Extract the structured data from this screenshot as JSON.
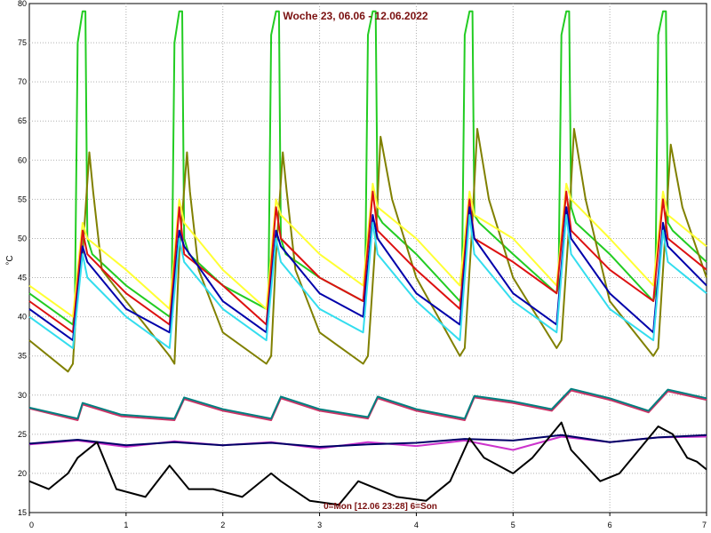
{
  "chart_data": {
    "type": "line",
    "title": "Woche 23, 06.06 - 12.06.2022",
    "xlabel": "0=Mon [12.06 23:28] 6=Son",
    "ylabel": "°C",
    "xlim": [
      0,
      7
    ],
    "ylim": [
      15,
      80
    ],
    "x_ticks": [
      "0",
      "1",
      "2",
      "3",
      "4",
      "5",
      "6",
      "7"
    ],
    "y_ticks": [
      "15",
      "20",
      "25",
      "30",
      "35",
      "40",
      "45",
      "50",
      "55",
      "60",
      "65",
      "70",
      "75",
      "80"
    ],
    "grid": true,
    "series": [
      {
        "color": "#22cc22",
        "x": [
          0,
          0.45,
          0.47,
          0.5,
          0.55,
          0.58,
          0.6,
          0.65,
          1.0,
          1.45,
          1.47,
          1.5,
          1.55,
          1.58,
          1.6,
          1.65,
          2.0,
          2.45,
          2.47,
          2.5,
          2.55,
          2.58,
          2.6,
          2.65,
          3.0,
          3.45,
          3.47,
          3.5,
          3.55,
          3.58,
          3.6,
          3.65,
          4.0,
          4.45,
          4.47,
          4.5,
          4.55,
          4.58,
          4.6,
          4.65,
          5.0,
          5.45,
          5.47,
          5.5,
          5.55,
          5.58,
          5.6,
          5.65,
          6.0,
          6.45,
          6.47,
          6.5,
          6.55,
          6.58,
          6.6,
          6.65,
          7.0
        ],
        "y": [
          43,
          39,
          41,
          75,
          79,
          79,
          50,
          48,
          44,
          40,
          41,
          75,
          79,
          79,
          50,
          48,
          44,
          41,
          42,
          76,
          79,
          79,
          50,
          48,
          45,
          42,
          43,
          76,
          79,
          79,
          53,
          52,
          48,
          42,
          43,
          76,
          79,
          79,
          53,
          52,
          48,
          43,
          44,
          76,
          79,
          79,
          54,
          52,
          48,
          42,
          43,
          76,
          79,
          79,
          52,
          51,
          47
        ]
      },
      {
        "color": "#808000",
        "x": [
          0,
          0.4,
          0.45,
          0.5,
          0.55,
          0.62,
          0.66,
          0.75,
          1.0,
          1.45,
          1.5,
          1.55,
          1.63,
          1.66,
          1.75,
          2.0,
          2.45,
          2.5,
          2.55,
          2.62,
          2.66,
          2.75,
          3.0,
          3.45,
          3.5,
          3.58,
          3.63,
          3.75,
          4.0,
          4.45,
          4.5,
          4.57,
          4.63,
          4.75,
          5.0,
          5.45,
          5.5,
          5.57,
          5.63,
          5.75,
          6.0,
          6.45,
          6.5,
          6.57,
          6.63,
          6.75,
          7.0
        ],
        "y": [
          37,
          33,
          34,
          44,
          48,
          61,
          56,
          46,
          42,
          35,
          34,
          48,
          61,
          56,
          46,
          38,
          34,
          35,
          48,
          61,
          56,
          46,
          38,
          34,
          35,
          50,
          63,
          55,
          45,
          35,
          36,
          50,
          64,
          55,
          45,
          36,
          37,
          50,
          64,
          55,
          42,
          35,
          36,
          50,
          62,
          54,
          45
        ]
      },
      {
        "color": "#ffff33",
        "x": [
          0,
          0.45,
          0.55,
          0.6,
          1.0,
          1.45,
          1.55,
          1.6,
          2.0,
          2.45,
          2.55,
          2.6,
          3.0,
          3.45,
          3.55,
          3.6,
          4.0,
          4.45,
          4.55,
          4.6,
          5.0,
          5.45,
          5.55,
          5.6,
          6.0,
          6.45,
          6.55,
          6.6,
          7.0
        ],
        "y": [
          44,
          40,
          52,
          50,
          46,
          41,
          55,
          52,
          46,
          41,
          55,
          53,
          48,
          44,
          57,
          54,
          50,
          44,
          56,
          53,
          50,
          44,
          57,
          55,
          50,
          44,
          56,
          53,
          49
        ]
      },
      {
        "color": "#dd1111",
        "x": [
          0,
          0.45,
          0.55,
          0.6,
          1.0,
          1.45,
          1.55,
          1.6,
          2.0,
          2.45,
          2.55,
          2.6,
          3.0,
          3.45,
          3.55,
          3.6,
          4.0,
          4.45,
          4.55,
          4.6,
          5.0,
          5.45,
          5.55,
          5.6,
          6.0,
          6.45,
          6.55,
          6.6,
          7.0
        ],
        "y": [
          42,
          38,
          51,
          48,
          43,
          39,
          54,
          48,
          44,
          39,
          54,
          50,
          45,
          42,
          56,
          51,
          46,
          41,
          55,
          50,
          47,
          43,
          56,
          51,
          46,
          42,
          55,
          50,
          46
        ]
      },
      {
        "color": "#0000aa",
        "x": [
          0,
          0.45,
          0.55,
          0.6,
          1.0,
          1.45,
          1.55,
          1.6,
          2.0,
          2.45,
          2.55,
          2.6,
          3.0,
          3.45,
          3.55,
          3.6,
          4.0,
          4.45,
          4.55,
          4.6,
          5.0,
          5.45,
          5.55,
          5.6,
          6.0,
          6.45,
          6.55,
          6.6,
          7.0
        ],
        "y": [
          41,
          37,
          49,
          47,
          41,
          38,
          51,
          49,
          42,
          38,
          51,
          49,
          43,
          40,
          53,
          50,
          43,
          39,
          54,
          50,
          43,
          39,
          54,
          50,
          43,
          38,
          52,
          49,
          44
        ]
      },
      {
        "color": "#33ddee",
        "x": [
          0,
          0.45,
          0.55,
          0.6,
          1.0,
          1.45,
          1.55,
          1.6,
          2.0,
          2.45,
          2.55,
          2.6,
          3.0,
          3.45,
          3.55,
          3.6,
          4.0,
          4.45,
          4.55,
          4.6,
          5.0,
          5.45,
          5.55,
          5.6,
          6.0,
          6.45,
          6.55,
          6.6,
          7.0
        ],
        "y": [
          40,
          36,
          48,
          45,
          40,
          36,
          50,
          47,
          41,
          37,
          50,
          47,
          41,
          38,
          52,
          48,
          42,
          37,
          53,
          48,
          42,
          38,
          53,
          48,
          41,
          37,
          51,
          47,
          43
        ]
      },
      {
        "color": "#cc33cc",
        "x": [
          0,
          0.5,
          1.0,
          1.5,
          2.0,
          2.5,
          3.0,
          3.5,
          4.0,
          4.5,
          5.0,
          5.5,
          6.0,
          6.5,
          7.0
        ],
        "y": [
          23.7,
          24.2,
          23.4,
          24.1,
          23.6,
          24.0,
          23.2,
          24.0,
          23.5,
          24.2,
          23.0,
          24.7,
          24.0,
          24.6,
          24.7
        ]
      },
      {
        "color": "#000066",
        "x": [
          0,
          0.5,
          1.0,
          1.5,
          2.0,
          2.5,
          3.0,
          3.5,
          4.0,
          4.5,
          5.0,
          5.5,
          6.0,
          6.5,
          7.0
        ],
        "y": [
          23.8,
          24.3,
          23.6,
          24.0,
          23.6,
          23.9,
          23.4,
          23.7,
          23.9,
          24.4,
          24.2,
          24.9,
          24.0,
          24.6,
          24.9
        ]
      },
      {
        "color": "#000000",
        "x": [
          0,
          0.2,
          0.4,
          0.5,
          0.7,
          0.9,
          1.2,
          1.45,
          1.65,
          1.9,
          2.2,
          2.5,
          2.6,
          2.9,
          3.2,
          3.4,
          3.6,
          3.8,
          4.1,
          4.35,
          4.55,
          4.7,
          5.0,
          5.2,
          5.5,
          5.6,
          5.9,
          6.1,
          6.3,
          6.5,
          6.65,
          6.8,
          6.9,
          7.0
        ],
        "y": [
          19,
          18,
          20,
          22,
          24,
          18,
          17,
          21,
          18,
          18,
          17,
          20,
          19,
          16.5,
          16,
          19,
          18,
          17,
          16.5,
          19,
          24.5,
          22,
          20,
          22,
          26.5,
          23,
          19,
          20,
          23,
          26,
          25,
          22,
          21.5,
          20.5
        ]
      },
      {
        "color": "#cc3366",
        "x": [
          0,
          0.5,
          0.55,
          0.95,
          1.5,
          1.6,
          2.0,
          2.5,
          2.6,
          3.0,
          3.5,
          3.6,
          4.0,
          4.5,
          4.6,
          5.0,
          5.4,
          5.6,
          6.0,
          6.4,
          6.6,
          7.0
        ],
        "y": [
          28.3,
          26.8,
          28.8,
          27.3,
          26.8,
          29.5,
          28.0,
          26.8,
          29.6,
          28.0,
          27.0,
          29.6,
          28.0,
          26.8,
          29.7,
          29.0,
          28.0,
          30.6,
          29.4,
          27.8,
          30.5,
          29.4
        ]
      },
      {
        "color": "#008080",
        "x": [
          0,
          0.5,
          0.55,
          0.95,
          1.5,
          1.6,
          2.0,
          2.5,
          2.6,
          3.0,
          3.5,
          3.6,
          4.0,
          4.5,
          4.6,
          5.0,
          5.4,
          5.6,
          6.0,
          6.4,
          6.6,
          7.0
        ],
        "y": [
          28.4,
          27.0,
          29.0,
          27.5,
          27.0,
          29.7,
          28.2,
          27.0,
          29.8,
          28.2,
          27.2,
          29.8,
          28.2,
          27.0,
          29.9,
          29.2,
          28.2,
          30.8,
          29.6,
          28.0,
          30.7,
          29.6
        ]
      }
    ]
  }
}
